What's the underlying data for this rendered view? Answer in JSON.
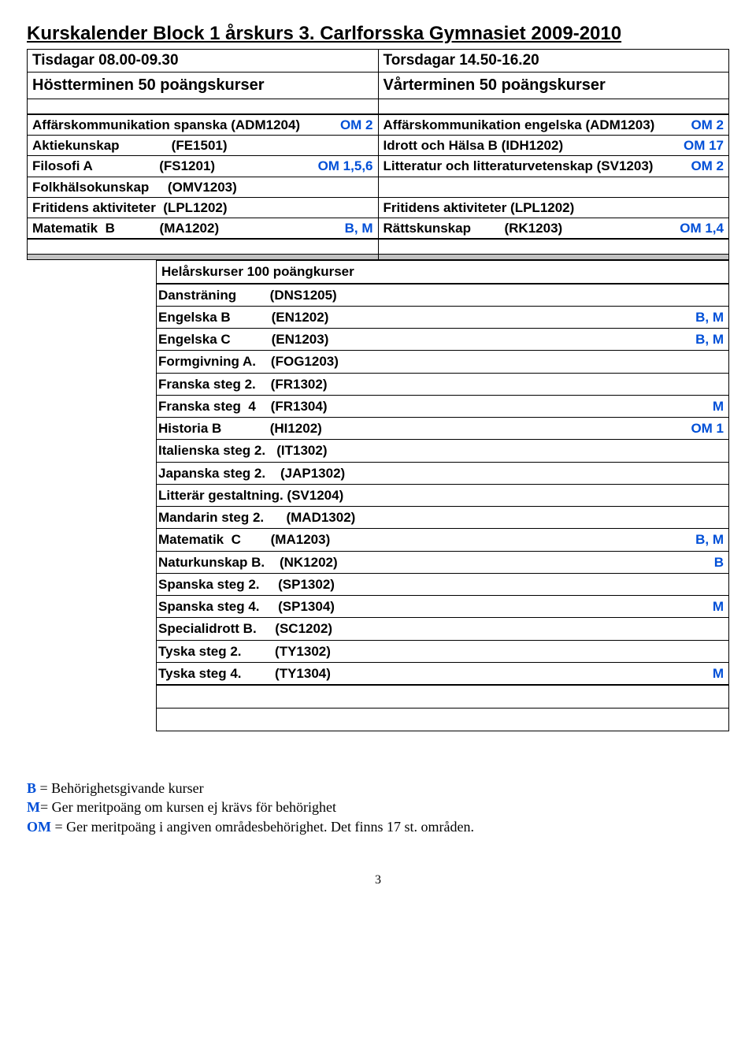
{
  "header": {
    "title": "Kurskalender Block 1 årskurs 3. Carlforsska Gymnasiet 2009-2010",
    "time_left": "Tisdagar 08.00-09.30",
    "time_right": "Torsdagar 14.50-16.20",
    "term_left": "Höstterminen 50 poängskurser",
    "term_right": "Vårterminen 50 poängskurser"
  },
  "top_rows": [
    {
      "l_label": "Affärskommunikation spanska (ADM1204)",
      "l_flag": "OM 2",
      "r_label": "Affärskommunikation engelska (ADM1203)",
      "r_flag": "OM 2"
    },
    {
      "l_label": "Aktiekunskap              (FE1501)",
      "l_flag": "",
      "r_label": "Idrott och Hälsa B (IDH1202)",
      "r_flag": "OM 17"
    },
    {
      "l_label": "Filosofi A                  (FS1201)",
      "l_flag": "OM 1,5,6",
      "r_label": "Litteratur och litteraturvetenskap (SV1203)",
      "r_flag": "OM 2"
    },
    {
      "l_label": "Folkhälsokunskap     (OMV1203)",
      "l_flag": "",
      "r_label": "",
      "r_flag": ""
    },
    {
      "l_label": "Fritidens aktiviteter  (LPL1202)",
      "l_flag": "",
      "r_label": "Fritidens aktiviteter (LPL1202)",
      "r_flag": ""
    },
    {
      "l_label": "Matematik  B            (MA1202)",
      "l_flag": "B, M",
      "r_label": "Rättskunskap         (RK1203)",
      "r_flag": "OM 1,4"
    }
  ],
  "annual_header": "Helårskurser 100 poängkurser",
  "annual_rows": [
    {
      "name": "Dansträning         (DNS1205)",
      "flag": ""
    },
    {
      "name": "Engelska B           (EN1202)",
      "flag": "B, M"
    },
    {
      "name": "Engelska C           (EN1203)",
      "flag": "B, M"
    },
    {
      "name": "Formgivning A.    (FOG1203)",
      "flag": ""
    },
    {
      "name": "Franska steg 2.    (FR1302)",
      "flag": ""
    },
    {
      "name": "Franska steg  4    (FR1304)",
      "flag": "M"
    },
    {
      "name": "Historia B             (HI1202)",
      "flag": "OM 1"
    },
    {
      "name": "Italienska steg 2.   (IT1302)",
      "flag": ""
    },
    {
      "name": "Japanska steg 2.    (JAP1302)",
      "flag": ""
    },
    {
      "name": "Litterär gestaltning. (SV1204)",
      "flag": ""
    },
    {
      "name": "Mandarin steg 2.      (MAD1302)",
      "flag": ""
    },
    {
      "name": "Matematik  C        (MA1203)",
      "flag": "B, M"
    },
    {
      "name": "Naturkunskap B.    (NK1202)",
      "flag": "B"
    },
    {
      "name": "Spanska steg 2.     (SP1302)",
      "flag": ""
    },
    {
      "name": "Spanska steg 4.     (SP1304)",
      "flag": "M"
    },
    {
      "name": "Specialidrott B.     (SC1202)",
      "flag": ""
    },
    {
      "name": "Tyska steg 2.         (TY1302)",
      "flag": ""
    },
    {
      "name": "Tyska steg 4.         (TY1304)",
      "flag": "M"
    }
  ],
  "legend": {
    "l1_pre": "B",
    "l1_post": " = Behörighetsgivande kurser",
    "l2_pre": "M",
    "l2_post": "= Ger meritpoäng om kursen ej krävs för behörighet",
    "l3_pre": "OM ",
    "l3_post": "= Ger meritpoäng i angiven områdesbehörighet. Det finns 17 st. områden."
  },
  "page_number": "3"
}
